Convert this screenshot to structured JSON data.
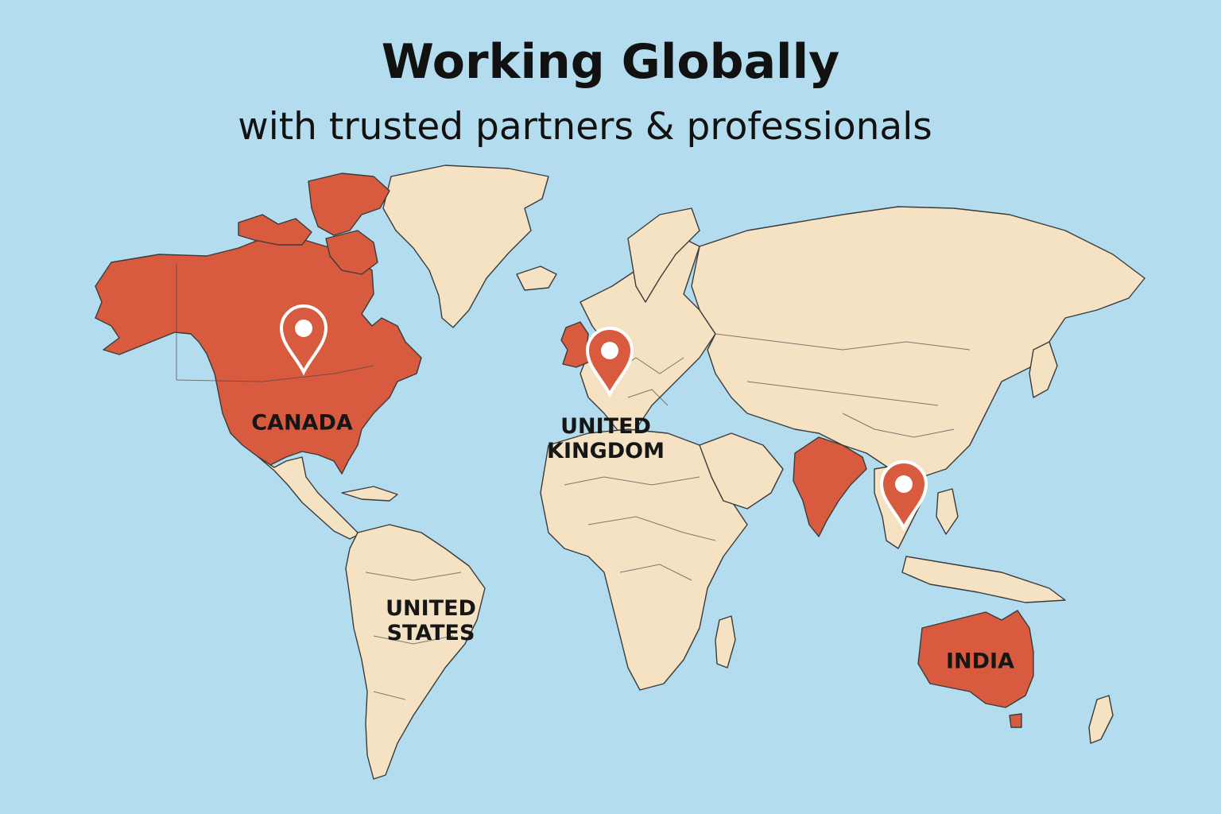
{
  "title": "Working Globally",
  "subtitle": "with trusted partners & professionals",
  "colors": {
    "ocean": "#b3dcee",
    "land": "#f4e2c3",
    "highlight": "#d85a3f",
    "pin": "#d85a3f",
    "pin_center": "#ffffff",
    "text": "#111111"
  },
  "labels": {
    "canada": "CANADA",
    "united_kingdom": "UNITED\nKINGDOM",
    "united_states": "UNITED\nSTATES",
    "india": "INDIA"
  },
  "highlighted_regions": [
    "north-america",
    "united-kingdom",
    "india",
    "australia"
  ],
  "pins": [
    "pin-canada",
    "pin-europe",
    "pin-southeast-asia"
  ]
}
